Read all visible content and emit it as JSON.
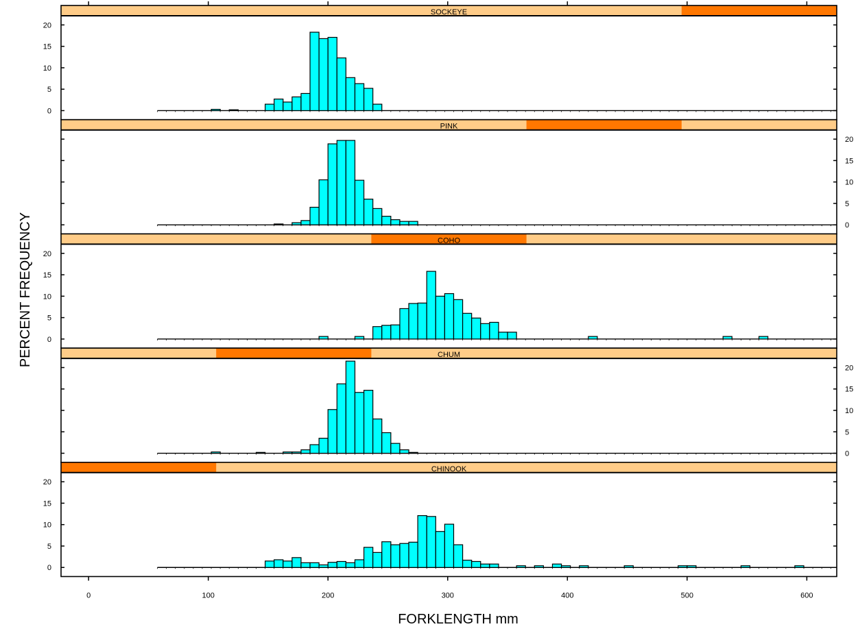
{
  "chart_data": {
    "type": "bar",
    "subtype": "trellis-histogram",
    "xlabel": "FORKLENGTH mm",
    "ylabel": "PERCENT FREQUENCY",
    "xlim": [
      -23,
      625
    ],
    "ylim": [
      -1,
      21.5
    ],
    "x_ticks": [
      0,
      100,
      200,
      300,
      400,
      500,
      600
    ],
    "y_ticks": [
      0,
      5,
      10,
      15,
      20
    ],
    "bin_width": 7.5,
    "x_start": 57.5,
    "x_end": 625,
    "grid": false,
    "legend": "none",
    "colors": {
      "bar_fill": "#00ffff",
      "bar_stroke": "#000000",
      "strip_bg": "#ffcc88",
      "strip_highlight": "#ff7700"
    },
    "panels": [
      {
        "name": "SOCKEYE",
        "strip_index": 4,
        "y_axis_labels_side": "left",
        "bars": [
          {
            "x": 102.5,
            "y": 0.3
          },
          {
            "x": 117.5,
            "y": 0.2
          },
          {
            "x": 147.5,
            "y": 1.5
          },
          {
            "x": 155,
            "y": 2.7
          },
          {
            "x": 162.5,
            "y": 2.0
          },
          {
            "x": 170,
            "y": 3.2
          },
          {
            "x": 177.5,
            "y": 4.0
          },
          {
            "x": 185,
            "y": 18.3
          },
          {
            "x": 192.5,
            "y": 16.8
          },
          {
            "x": 200,
            "y": 17.1
          },
          {
            "x": 207.5,
            "y": 12.3
          },
          {
            "x": 215,
            "y": 7.7
          },
          {
            "x": 222.5,
            "y": 6.3
          },
          {
            "x": 230,
            "y": 5.2
          },
          {
            "x": 237.5,
            "y": 1.5
          }
        ]
      },
      {
        "name": "PINK",
        "strip_index": 3,
        "y_axis_labels_side": "right",
        "bars": [
          {
            "x": 155,
            "y": 0.2
          },
          {
            "x": 170,
            "y": 0.5
          },
          {
            "x": 177.5,
            "y": 1.0
          },
          {
            "x": 185,
            "y": 4.1
          },
          {
            "x": 192.5,
            "y": 10.5
          },
          {
            "x": 200,
            "y": 18.9
          },
          {
            "x": 207.5,
            "y": 19.7
          },
          {
            "x": 215,
            "y": 19.7
          },
          {
            "x": 222.5,
            "y": 10.4
          },
          {
            "x": 230,
            "y": 6.0
          },
          {
            "x": 237.5,
            "y": 3.8
          },
          {
            "x": 245,
            "y": 2.0
          },
          {
            "x": 252.5,
            "y": 1.2
          },
          {
            "x": 260,
            "y": 0.8
          },
          {
            "x": 267.5,
            "y": 0.8
          }
        ]
      },
      {
        "name": "COHO",
        "strip_index": 2,
        "y_axis_labels_side": "left",
        "bars": [
          {
            "x": 192.5,
            "y": 0.6
          },
          {
            "x": 222.5,
            "y": 0.6
          },
          {
            "x": 237.5,
            "y": 2.9
          },
          {
            "x": 245,
            "y": 3.2
          },
          {
            "x": 252.5,
            "y": 3.3
          },
          {
            "x": 260,
            "y": 7.1
          },
          {
            "x": 267.5,
            "y": 8.3
          },
          {
            "x": 275,
            "y": 8.4
          },
          {
            "x": 282.5,
            "y": 15.8
          },
          {
            "x": 290,
            "y": 10.0
          },
          {
            "x": 297.5,
            "y": 10.6
          },
          {
            "x": 305,
            "y": 9.2
          },
          {
            "x": 312.5,
            "y": 6.0
          },
          {
            "x": 320,
            "y": 4.9
          },
          {
            "x": 327.5,
            "y": 3.6
          },
          {
            "x": 335,
            "y": 3.9
          },
          {
            "x": 342.5,
            "y": 1.6
          },
          {
            "x": 350,
            "y": 1.6
          },
          {
            "x": 417.5,
            "y": 0.6
          },
          {
            "x": 530,
            "y": 0.6
          },
          {
            "x": 560,
            "y": 0.6
          }
        ]
      },
      {
        "name": "CHUM",
        "strip_index": 1,
        "y_axis_labels_side": "right",
        "bars": [
          {
            "x": 102.5,
            "y": 0.3
          },
          {
            "x": 140,
            "y": 0.2
          },
          {
            "x": 162.5,
            "y": 0.3
          },
          {
            "x": 170,
            "y": 0.3
          },
          {
            "x": 177.5,
            "y": 0.8
          },
          {
            "x": 185,
            "y": 2.0
          },
          {
            "x": 192.5,
            "y": 3.5
          },
          {
            "x": 200,
            "y": 10.2
          },
          {
            "x": 207.5,
            "y": 16.2
          },
          {
            "x": 215,
            "y": 21.5
          },
          {
            "x": 222.5,
            "y": 14.2
          },
          {
            "x": 230,
            "y": 14.7
          },
          {
            "x": 237.5,
            "y": 8.0
          },
          {
            "x": 245,
            "y": 4.8
          },
          {
            "x": 252.5,
            "y": 2.3
          },
          {
            "x": 260,
            "y": 0.8
          },
          {
            "x": 267.5,
            "y": 0.2
          }
        ]
      },
      {
        "name": "CHINOOK",
        "strip_index": 0,
        "y_axis_labels_side": "left",
        "bars": [
          {
            "x": 147.5,
            "y": 1.5
          },
          {
            "x": 155,
            "y": 1.8
          },
          {
            "x": 162.5,
            "y": 1.5
          },
          {
            "x": 170,
            "y": 2.3
          },
          {
            "x": 177.5,
            "y": 1.1
          },
          {
            "x": 185,
            "y": 1.1
          },
          {
            "x": 192.5,
            "y": 0.6
          },
          {
            "x": 200,
            "y": 1.2
          },
          {
            "x": 207.5,
            "y": 1.4
          },
          {
            "x": 215,
            "y": 1.1
          },
          {
            "x": 222.5,
            "y": 1.8
          },
          {
            "x": 230,
            "y": 4.7
          },
          {
            "x": 237.5,
            "y": 3.5
          },
          {
            "x": 245,
            "y": 6.0
          },
          {
            "x": 252.5,
            "y": 5.3
          },
          {
            "x": 260,
            "y": 5.6
          },
          {
            "x": 267.5,
            "y": 5.9
          },
          {
            "x": 275,
            "y": 12.1
          },
          {
            "x": 282.5,
            "y": 11.9
          },
          {
            "x": 290,
            "y": 8.4
          },
          {
            "x": 297.5,
            "y": 10.1
          },
          {
            "x": 305,
            "y": 5.3
          },
          {
            "x": 312.5,
            "y": 1.7
          },
          {
            "x": 320,
            "y": 1.4
          },
          {
            "x": 327.5,
            "y": 0.8
          },
          {
            "x": 335,
            "y": 0.8
          },
          {
            "x": 357.5,
            "y": 0.4
          },
          {
            "x": 372.5,
            "y": 0.4
          },
          {
            "x": 387.5,
            "y": 0.8
          },
          {
            "x": 395,
            "y": 0.4
          },
          {
            "x": 410,
            "y": 0.4
          },
          {
            "x": 447.5,
            "y": 0.4
          },
          {
            "x": 492.5,
            "y": 0.4
          },
          {
            "x": 500,
            "y": 0.4
          },
          {
            "x": 545,
            "y": 0.4
          },
          {
            "x": 590,
            "y": 0.4
          }
        ]
      }
    ]
  }
}
